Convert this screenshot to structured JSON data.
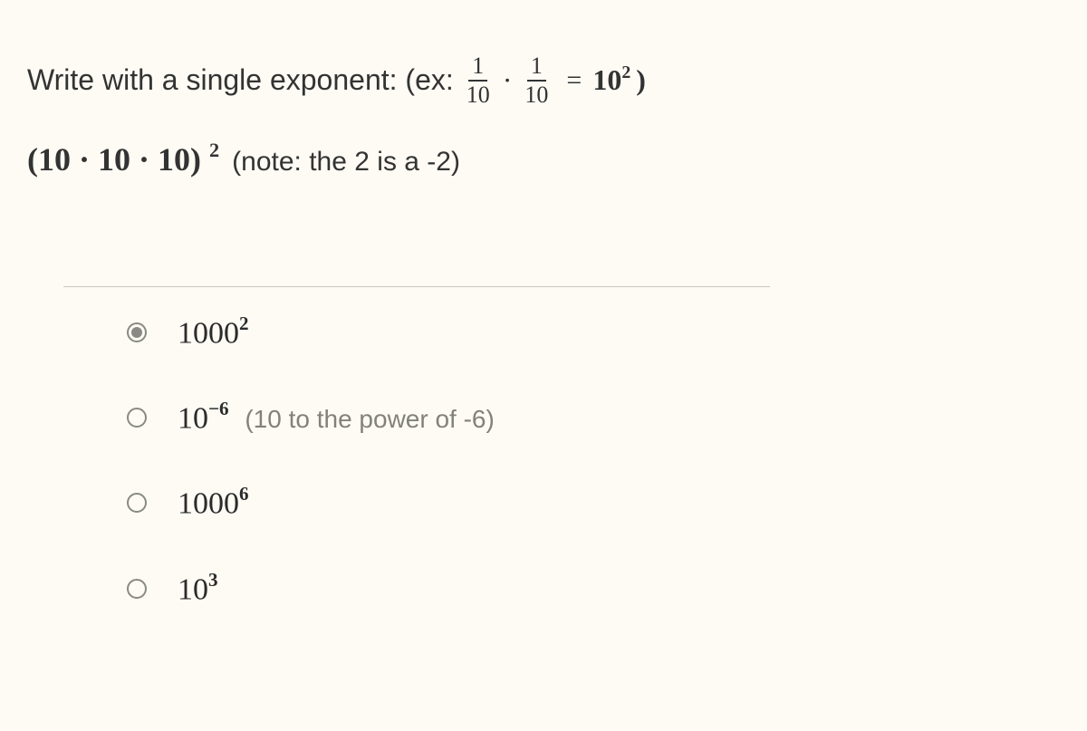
{
  "colors": {
    "background": "#fdfbf4",
    "text": "#3a3a3a",
    "hint": "#828279",
    "divider": "#c9c6bb",
    "radio_border": "#8a8a84"
  },
  "question": {
    "prompt_prefix": "Write with a single exponent: (ex:",
    "frac1": {
      "num": "1",
      "den": "10"
    },
    "dot": "·",
    "frac2": {
      "num": "1",
      "den": "10"
    },
    "equals": "=",
    "ex_base": "10",
    "ex_exp": "2",
    "close": ")",
    "expr_open": "(",
    "expr_body": "10 · 10 · 10",
    "expr_close": ")",
    "expr_exp": "2",
    "note": "(note: the 2 is a -2)"
  },
  "options": [
    {
      "selected": true,
      "base": "1000",
      "exp": "2",
      "hint": ""
    },
    {
      "selected": false,
      "base": "10",
      "exp": "−6",
      "hint": "(10 to the power of -6)"
    },
    {
      "selected": false,
      "base": "1000",
      "exp": "6",
      "hint": ""
    },
    {
      "selected": false,
      "base": "10",
      "exp": "3",
      "hint": ""
    }
  ]
}
